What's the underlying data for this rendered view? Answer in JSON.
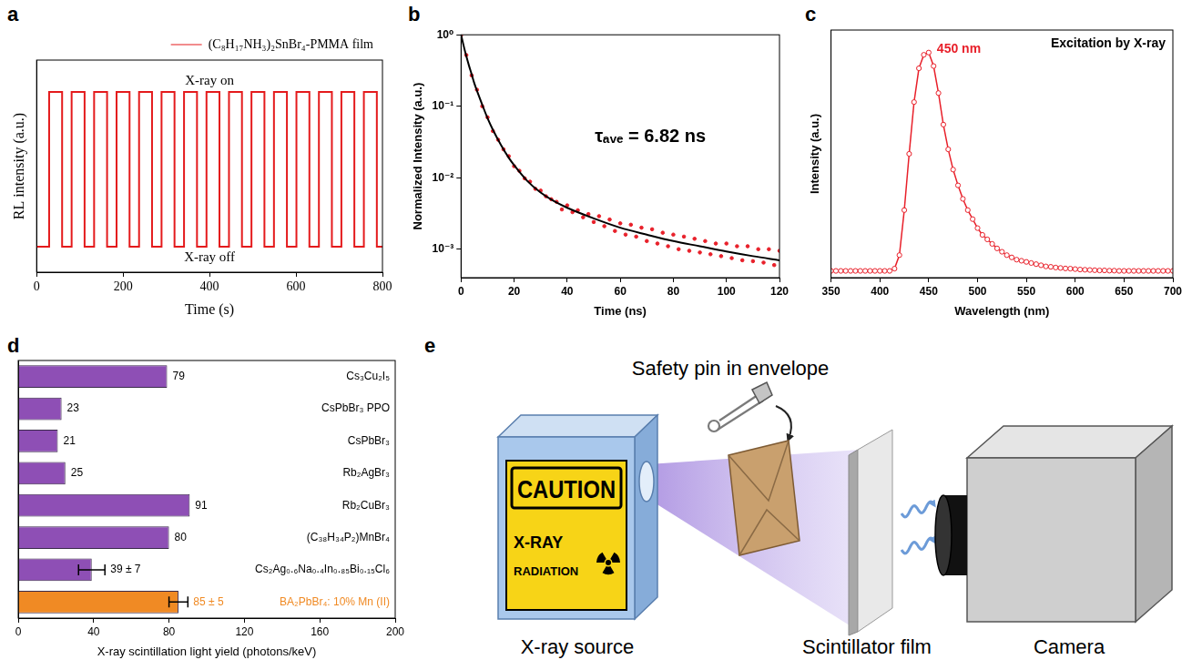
{
  "chart_data": [
    {
      "panel": "a",
      "type": "line",
      "x_label": "Time (s)",
      "y_label": "RL intensity (a.u.)",
      "xlim": [
        0,
        800
      ],
      "xticks": [
        0,
        200,
        400,
        600,
        800
      ],
      "ylim": [
        0,
        1
      ],
      "tick_labels": "x",
      "grid": false,
      "legend": "upper right",
      "annotations": [
        "X-ray on",
        "X-ray off"
      ],
      "series": [
        {
          "name": "(C₈H₁₇NH₃)₂SnBr₄-PMMA film",
          "color": "#e41a1c",
          "x": [
            0,
            29,
            29,
            59,
            59,
            81,
            81,
            111,
            111,
            133,
            133,
            163,
            163,
            185,
            185,
            215,
            215,
            237,
            237,
            267,
            267,
            289,
            289,
            319,
            319,
            341,
            341,
            371,
            371,
            393,
            393,
            423,
            423,
            445,
            445,
            475,
            475,
            497,
            497,
            527,
            527,
            549,
            549,
            579,
            579,
            601,
            601,
            631,
            631,
            653,
            653,
            683,
            683,
            705,
            705,
            735,
            735,
            757,
            757,
            787,
            787,
            800
          ],
          "values": [
            0.12,
            0.12,
            0.85,
            0.85,
            0.12,
            0.12,
            0.85,
            0.85,
            0.12,
            0.12,
            0.85,
            0.85,
            0.12,
            0.12,
            0.85,
            0.85,
            0.12,
            0.12,
            0.85,
            0.85,
            0.12,
            0.12,
            0.85,
            0.85,
            0.12,
            0.12,
            0.85,
            0.85,
            0.12,
            0.12,
            0.85,
            0.85,
            0.12,
            0.12,
            0.85,
            0.85,
            0.12,
            0.12,
            0.85,
            0.85,
            0.12,
            0.12,
            0.85,
            0.85,
            0.12,
            0.12,
            0.85,
            0.85,
            0.12,
            0.12,
            0.85,
            0.85,
            0.12,
            0.12,
            0.85,
            0.85,
            0.12,
            0.12,
            0.85,
            0.85,
            0.12,
            0.12
          ]
        }
      ]
    },
    {
      "panel": "b",
      "type": "scatter",
      "log": "y",
      "x_label": "Time (ns)",
      "y_label": "Normalized Intensity (a.u.)",
      "xlim": [
        0,
        120
      ],
      "xticks": [
        0,
        20,
        40,
        60,
        80,
        100,
        120
      ],
      "ylim": [
        0.0004,
        1
      ],
      "yticks": [
        {
          "value": 0.001,
          "label": "10⁻³"
        },
        {
          "value": 0.01,
          "label": "10⁻²"
        },
        {
          "value": 0.1,
          "label": "10⁻¹"
        },
        {
          "value": 1,
          "label": "10⁰"
        }
      ],
      "grid": false,
      "annotations": [
        "τₐᵥₑ = 6.82 ns"
      ],
      "series": [
        {
          "type": "scatter",
          "color": "#e8202a",
          "marker": "circle",
          "x": [
            0,
            2,
            4,
            6,
            8,
            10,
            12,
            14,
            16,
            18,
            20,
            22,
            24,
            26,
            28,
            30,
            32,
            34,
            36,
            38,
            40,
            42,
            44,
            46,
            48,
            50,
            52,
            54,
            56,
            58,
            60,
            62,
            64,
            66,
            68,
            70,
            72,
            74,
            76,
            78,
            80,
            82,
            84,
            86,
            88,
            90,
            92,
            94,
            96,
            98,
            100,
            102,
            104,
            106,
            108,
            110,
            112,
            114,
            116,
            118,
            120
          ],
          "values": [
            0.98,
            0.52,
            0.27,
            0.17,
            0.1,
            0.07,
            0.045,
            0.034,
            0.025,
            0.02,
            0.0145,
            0.0125,
            0.0098,
            0.0088,
            0.007,
            0.0066,
            0.0055,
            0.005,
            0.0046,
            0.0036,
            0.0041,
            0.0033,
            0.0035,
            0.0028,
            0.0031,
            0.0024,
            0.0029,
            0.0021,
            0.0026,
            0.0018,
            0.0023,
            0.0016,
            0.0022,
            0.0015,
            0.002,
            0.0013,
            0.0019,
            0.0012,
            0.0017,
            0.0011,
            0.0016,
            0.001,
            0.0015,
            0.00095,
            0.0014,
            0.0009,
            0.0013,
            0.00085,
            0.0012,
            0.0008,
            0.0012,
            0.00075,
            0.0011,
            0.0007,
            0.0011,
            0.00068,
            0.001,
            0.00065,
            0.001,
            0.0006,
            0.00095
          ]
        },
        {
          "type": "line",
          "color": "#000000",
          "x": [
            0,
            1,
            2,
            3,
            4,
            5,
            6,
            8,
            10,
            12,
            15,
            18,
            20,
            25,
            30,
            35,
            40,
            50,
            60,
            70,
            80,
            90,
            100,
            110,
            120
          ],
          "values": [
            1.0,
            0.7,
            0.5,
            0.37,
            0.28,
            0.21,
            0.165,
            0.105,
            0.068,
            0.047,
            0.029,
            0.019,
            0.015,
            0.009,
            0.0062,
            0.0047,
            0.0038,
            0.0027,
            0.002,
            0.0016,
            0.0013,
            0.0011,
            0.00093,
            0.0008,
            0.0007
          ]
        }
      ]
    },
    {
      "panel": "c",
      "type": "line",
      "x_label": "Wavelength (nm)",
      "y_label": "Intensity (a.u.)",
      "xlim": [
        350,
        700
      ],
      "xticks": [
        350,
        400,
        450,
        500,
        550,
        600,
        650,
        700
      ],
      "ylim": [
        0,
        1.1
      ],
      "tick_labels": "x",
      "grid": false,
      "annotations": [
        "450 nm",
        "Excitation by X-ray"
      ],
      "series": [
        {
          "color": "#e8202a",
          "marker": "open circle",
          "x": [
            350,
            355,
            360,
            365,
            370,
            375,
            380,
            385,
            390,
            395,
            400,
            405,
            410,
            415,
            420,
            425,
            430,
            435,
            440,
            445,
            450,
            455,
            460,
            465,
            470,
            475,
            480,
            485,
            490,
            495,
            500,
            505,
            510,
            515,
            520,
            525,
            530,
            535,
            540,
            545,
            550,
            555,
            560,
            565,
            570,
            575,
            580,
            585,
            590,
            595,
            600,
            605,
            610,
            615,
            620,
            625,
            630,
            635,
            640,
            645,
            650,
            655,
            660,
            665,
            670,
            675,
            680,
            685,
            690,
            695,
            700
          ],
          "values": [
            0.03,
            0.03,
            0.03,
            0.03,
            0.03,
            0.03,
            0.03,
            0.03,
            0.03,
            0.03,
            0.03,
            0.03,
            0.03,
            0.04,
            0.1,
            0.3,
            0.55,
            0.78,
            0.93,
            0.99,
            1.0,
            0.94,
            0.82,
            0.68,
            0.57,
            0.48,
            0.41,
            0.35,
            0.3,
            0.26,
            0.22,
            0.19,
            0.17,
            0.15,
            0.13,
            0.115,
            0.1,
            0.09,
            0.08,
            0.075,
            0.07,
            0.065,
            0.06,
            0.055,
            0.05,
            0.048,
            0.045,
            0.043,
            0.041,
            0.04,
            0.038,
            0.036,
            0.035,
            0.034,
            0.033,
            0.032,
            0.032,
            0.031,
            0.031,
            0.03,
            0.03,
            0.03,
            0.03,
            0.03,
            0.03,
            0.03,
            0.03,
            0.03,
            0.03,
            0.03,
            0.03
          ]
        }
      ]
    },
    {
      "panel": "d",
      "type": "bar",
      "orientation": "horizontal",
      "x_label": "X-ray scintillation light yield (photons/keV)",
      "categories": [
        "Cs₃Cu₂I₅",
        "CsPbBr₃ PPO",
        "CsPbBr₃",
        "Rb₂AgBr₃",
        "Rb₂CuBr₃",
        "(C₃₈H₃₄P₂)MnBr₄",
        "Cs₂Ag₀.₆Na₀.₄In₀.₈₅Bi₀.₁₅Cl₆",
        "BA₂PbBr₄: 10% Mn (II)"
      ],
      "values": [
        79,
        23,
        21,
        25,
        91,
        80,
        39,
        85
      ],
      "errors": [
        null,
        null,
        null,
        null,
        null,
        null,
        7,
        5
      ],
      "value_labels": [
        "79",
        "23",
        "21",
        "25",
        "91",
        "80",
        "39 ± 7",
        "85 ± 5"
      ],
      "colors": [
        "#8e4fb5",
        "#8e4fb5",
        "#8e4fb5",
        "#8e4fb5",
        "#8e4fb5",
        "#8e4fb5",
        "#8e4fb5",
        "#f08a24"
      ],
      "xlim": [
        0,
        200
      ],
      "xticks": [
        0,
        40,
        80,
        120,
        160,
        200
      ],
      "data_labels": true,
      "tick_labels": "x",
      "grid": false
    }
  ],
  "diagram": {
    "panel": "e",
    "title": "Safety pin in envelope",
    "sign": [
      "CAUTION",
      "X-RAY",
      "RADIATION"
    ],
    "labels": [
      "X-ray source",
      "Scintillator film",
      "Camera"
    ]
  }
}
